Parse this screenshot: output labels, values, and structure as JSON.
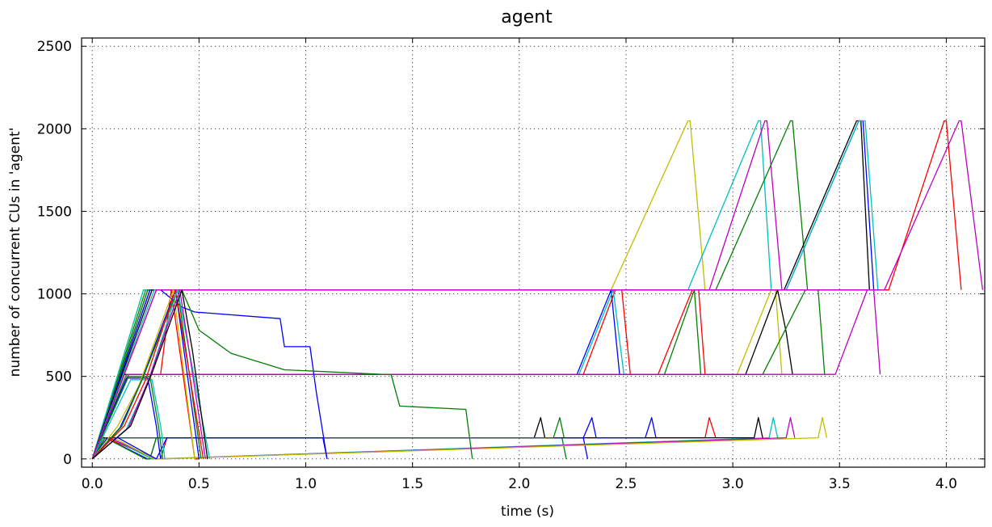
{
  "chart_data": {
    "type": "line",
    "title": "agent",
    "xlabel": "time (s)",
    "ylabel": "number of concurrent CUs in 'agent'",
    "xlim": [
      -0.05,
      4.18
    ],
    "ylim": [
      -50,
      2550
    ],
    "xticks": [
      "0.0",
      "0.5",
      "1.0",
      "1.5",
      "2.0",
      "2.5",
      "3.0",
      "3.5",
      "4.0"
    ],
    "yticks": [
      "0",
      "500",
      "1000",
      "1500",
      "2000",
      "2500"
    ],
    "grid": true,
    "legend": "none",
    "series": [
      {
        "color": "#0000ff",
        "x": [
          0,
          0.04,
          0.06,
          0.26,
          0.27,
          0.3,
          2.3,
          2.32
        ],
        "y": [
          0,
          128,
          128,
          0,
          0,
          128,
          128,
          0
        ]
      },
      {
        "color": "#008000",
        "x": [
          0,
          0.04,
          0.06,
          0.25,
          0.27,
          0.3,
          2.2,
          2.22
        ],
        "y": [
          0,
          128,
          128,
          0,
          0,
          128,
          128,
          0
        ]
      },
      {
        "color": "#ff0000",
        "x": [
          0,
          0.04,
          0.06,
          0.3,
          0.32,
          0.35,
          2.87,
          2.89,
          2.92,
          2.93
        ],
        "y": [
          0,
          128,
          128,
          0,
          0,
          128,
          128,
          250,
          128,
          128
        ]
      },
      {
        "color": "#00bfbf",
        "x": [
          0,
          0.04,
          0.08,
          0.28,
          0.3,
          3.17,
          3.19,
          3.21
        ],
        "y": [
          0,
          128,
          128,
          0,
          0,
          128,
          250,
          128
        ]
      },
      {
        "color": "#bf00bf",
        "x": [
          0,
          0.04,
          0.08,
          0.3,
          0.32,
          3.25,
          3.27,
          3.29
        ],
        "y": [
          0,
          128,
          128,
          0,
          0,
          128,
          250,
          128
        ]
      },
      {
        "color": "#bfbf00",
        "x": [
          0,
          0.05,
          0.1,
          0.29,
          0.32,
          3.4,
          3.42,
          3.44
        ],
        "y": [
          0,
          128,
          128,
          0,
          0,
          128,
          250,
          128
        ]
      },
      {
        "color": "#000000",
        "x": [
          0,
          0.05,
          0.12,
          2.07,
          2.1,
          2.12,
          3.1,
          3.12,
          3.14
        ],
        "y": [
          0,
          128,
          128,
          128,
          250,
          128,
          128,
          250,
          128
        ]
      },
      {
        "color": "#0000ff",
        "x": [
          0,
          0.06,
          0.12,
          2.3,
          2.34,
          2.36,
          2.59,
          2.62,
          2.64
        ],
        "y": [
          0,
          128,
          128,
          128,
          250,
          128,
          128,
          250,
          128
        ]
      },
      {
        "color": "#008000",
        "x": [
          0,
          0.06,
          0.1,
          2.16,
          2.19,
          2.21
        ],
        "y": [
          0,
          128,
          128,
          128,
          250,
          128
        ]
      },
      {
        "color": "#0000ff",
        "x": [
          0,
          0.07,
          0.12,
          0.3,
          0.35,
          1.08,
          1.1
        ],
        "y": [
          0,
          128,
          128,
          0,
          128,
          128,
          0
        ]
      },
      {
        "color": "#ff0000",
        "x": [
          0,
          0.13,
          0.15,
          0.32,
          0.37,
          0.48,
          0.5
        ],
        "y": [
          0,
          512,
          512,
          512,
          1024,
          0,
          0
        ]
      },
      {
        "color": "#ff0000",
        "x": [
          0,
          0.14,
          0.3,
          0.32,
          2.3,
          2.45,
          2.48,
          2.52
        ],
        "y": [
          0,
          512,
          512,
          512,
          512,
          1024,
          1024,
          512
        ]
      },
      {
        "color": "#0000ff",
        "x": [
          0,
          0.13,
          0.26,
          0.3,
          2.27,
          2.43,
          2.47
        ],
        "y": [
          0,
          512,
          512,
          512,
          512,
          1024,
          512
        ]
      },
      {
        "color": "#00bfbf",
        "x": [
          0,
          0.14,
          0.28,
          0.3,
          2.28,
          2.44,
          2.49
        ],
        "y": [
          0,
          512,
          512,
          512,
          512,
          1024,
          512
        ]
      },
      {
        "color": "#ff0000",
        "x": [
          0,
          0.13,
          0.32,
          2.65,
          2.81,
          2.84,
          2.87
        ],
        "y": [
          0,
          512,
          512,
          512,
          1024,
          1024,
          512
        ]
      },
      {
        "color": "#008000",
        "x": [
          0,
          0.14,
          0.34,
          2.68,
          2.82,
          2.85
        ],
        "y": [
          0,
          512,
          512,
          512,
          1024,
          512
        ]
      },
      {
        "color": "#bfbf00",
        "x": [
          0,
          0.15,
          0.36,
          3.02,
          3.18,
          3.2,
          3.23
        ],
        "y": [
          0,
          512,
          512,
          512,
          1024,
          1024,
          512
        ]
      },
      {
        "color": "#000000",
        "x": [
          0,
          0.15,
          0.38,
          3.06,
          3.21,
          3.25,
          3.28
        ],
        "y": [
          0,
          512,
          512,
          512,
          1024,
          768,
          512
        ]
      },
      {
        "color": "#008000",
        "x": [
          0,
          0.16,
          0.4,
          3.14,
          3.34,
          3.4,
          3.43
        ],
        "y": [
          0,
          512,
          512,
          512,
          1024,
          1024,
          512
        ]
      },
      {
        "color": "#bf00bf",
        "x": [
          0,
          0.17,
          0.42,
          3.48,
          3.63,
          3.66,
          3.69
        ],
        "y": [
          0,
          512,
          512,
          512,
          1024,
          1024,
          512
        ]
      },
      {
        "color": "#0000ff",
        "x": [
          0,
          0.16,
          0.26,
          0.3,
          0.32
        ],
        "y": [
          0,
          490,
          490,
          200,
          0
        ]
      },
      {
        "color": "#008000",
        "x": [
          0,
          0.17,
          0.27,
          0.31,
          0.33
        ],
        "y": [
          0,
          500,
          500,
          200,
          0
        ]
      },
      {
        "color": "#00bfbf",
        "x": [
          0,
          0.18,
          0.28,
          0.32,
          0.34
        ],
        "y": [
          0,
          480,
          480,
          200,
          0
        ]
      },
      {
        "color": "#0000ff",
        "x": [
          0,
          0.27,
          0.32,
          0.42,
          0.48,
          0.88,
          0.9,
          1.02,
          1.05,
          1.1
        ],
        "y": [
          0,
          1024,
          1024,
          920,
          890,
          850,
          680,
          680,
          400,
          0
        ]
      },
      {
        "color": "#008000",
        "x": [
          0,
          0.25,
          0.42,
          0.5,
          0.65,
          0.9,
          1.4,
          1.44,
          1.75,
          1.78
        ],
        "y": [
          0,
          1024,
          1024,
          780,
          640,
          540,
          510,
          320,
          300,
          0
        ]
      },
      {
        "color": "#bfbf00",
        "x": [
          0,
          0.24,
          0.28,
          0.44,
          2.43,
          2.79,
          2.8,
          2.87
        ],
        "y": [
          0,
          1024,
          1024,
          1024,
          1024,
          2048,
          2048,
          1024
        ]
      },
      {
        "color": "#00bfbf",
        "x": [
          0,
          0.24,
          0.3,
          0.46,
          2.79,
          3.12,
          3.13,
          3.18
        ],
        "y": [
          0,
          1024,
          1024,
          1024,
          1024,
          2048,
          2048,
          1024
        ]
      },
      {
        "color": "#bf00bf",
        "x": [
          0,
          0.26,
          0.34,
          0.46,
          2.89,
          3.15,
          3.16,
          3.23
        ],
        "y": [
          0,
          1024,
          1024,
          1024,
          1024,
          2048,
          2048,
          1024
        ]
      },
      {
        "color": "#008000",
        "x": [
          0,
          0.26,
          0.36,
          0.47,
          2.92,
          3.27,
          3.28,
          3.35
        ],
        "y": [
          0,
          1024,
          1024,
          1024,
          1024,
          2048,
          2048,
          1024
        ]
      },
      {
        "color": "#0000ff",
        "x": [
          0,
          0.27,
          0.38,
          0.48,
          3.25,
          3.59,
          3.61,
          3.66
        ],
        "y": [
          0,
          1024,
          1024,
          1024,
          1024,
          2048,
          2048,
          1024
        ]
      },
      {
        "color": "#000000",
        "x": [
          0,
          0.28,
          0.4,
          0.5,
          3.24,
          3.58,
          3.6,
          3.64
        ],
        "y": [
          0,
          1024,
          1024,
          1024,
          1024,
          2048,
          2048,
          1024
        ]
      },
      {
        "color": "#00bfbf",
        "x": [
          0,
          0.29,
          0.42,
          0.52,
          3.25,
          3.59,
          3.62,
          3.68
        ],
        "y": [
          0,
          1024,
          1024,
          1024,
          1024,
          2048,
          2048,
          1024
        ]
      },
      {
        "color": "#ff0000",
        "x": [
          0,
          0.3,
          0.4,
          0.5,
          3.73,
          3.99,
          4.0,
          4.07
        ],
        "y": [
          0,
          1024,
          1024,
          1024,
          1024,
          2048,
          2048,
          1024
        ]
      },
      {
        "color": "#bf00bf",
        "x": [
          0,
          0.3,
          0.4,
          0.52,
          3.71,
          4.06,
          4.07,
          4.17
        ],
        "y": [
          0,
          1024,
          1024,
          1024,
          1024,
          2048,
          2048,
          1024
        ]
      },
      {
        "color": "#bfbf00",
        "x": [
          0,
          0.12,
          0.22,
          0.38,
          0.48
        ],
        "y": [
          0,
          200,
          450,
          1024,
          0
        ]
      },
      {
        "color": "#0000ff",
        "x": [
          0,
          0.13,
          0.23,
          0.39,
          0.5
        ],
        "y": [
          0,
          190,
          470,
          1024,
          0
        ]
      },
      {
        "color": "#008000",
        "x": [
          0,
          0.14,
          0.24,
          0.4,
          0.51
        ],
        "y": [
          0,
          200,
          500,
          1024,
          0
        ]
      },
      {
        "color": "#ff0000",
        "x": [
          0,
          0.15,
          0.25,
          0.39,
          0.52
        ],
        "y": [
          0,
          200,
          480,
          1024,
          0
        ]
      },
      {
        "color": "#00bfbf",
        "x": [
          0,
          0.16,
          0.26,
          0.4,
          0.55
        ],
        "y": [
          0,
          180,
          460,
          1024,
          0
        ]
      },
      {
        "color": "#bf00bf",
        "x": [
          0,
          0.17,
          0.27,
          0.41,
          0.53
        ],
        "y": [
          0,
          190,
          500,
          1024,
          0
        ]
      },
      {
        "color": "#000000",
        "x": [
          0,
          0.18,
          0.28,
          0.42,
          0.47,
          0.54
        ],
        "y": [
          0,
          200,
          520,
          1024,
          650,
          0
        ]
      }
    ]
  }
}
